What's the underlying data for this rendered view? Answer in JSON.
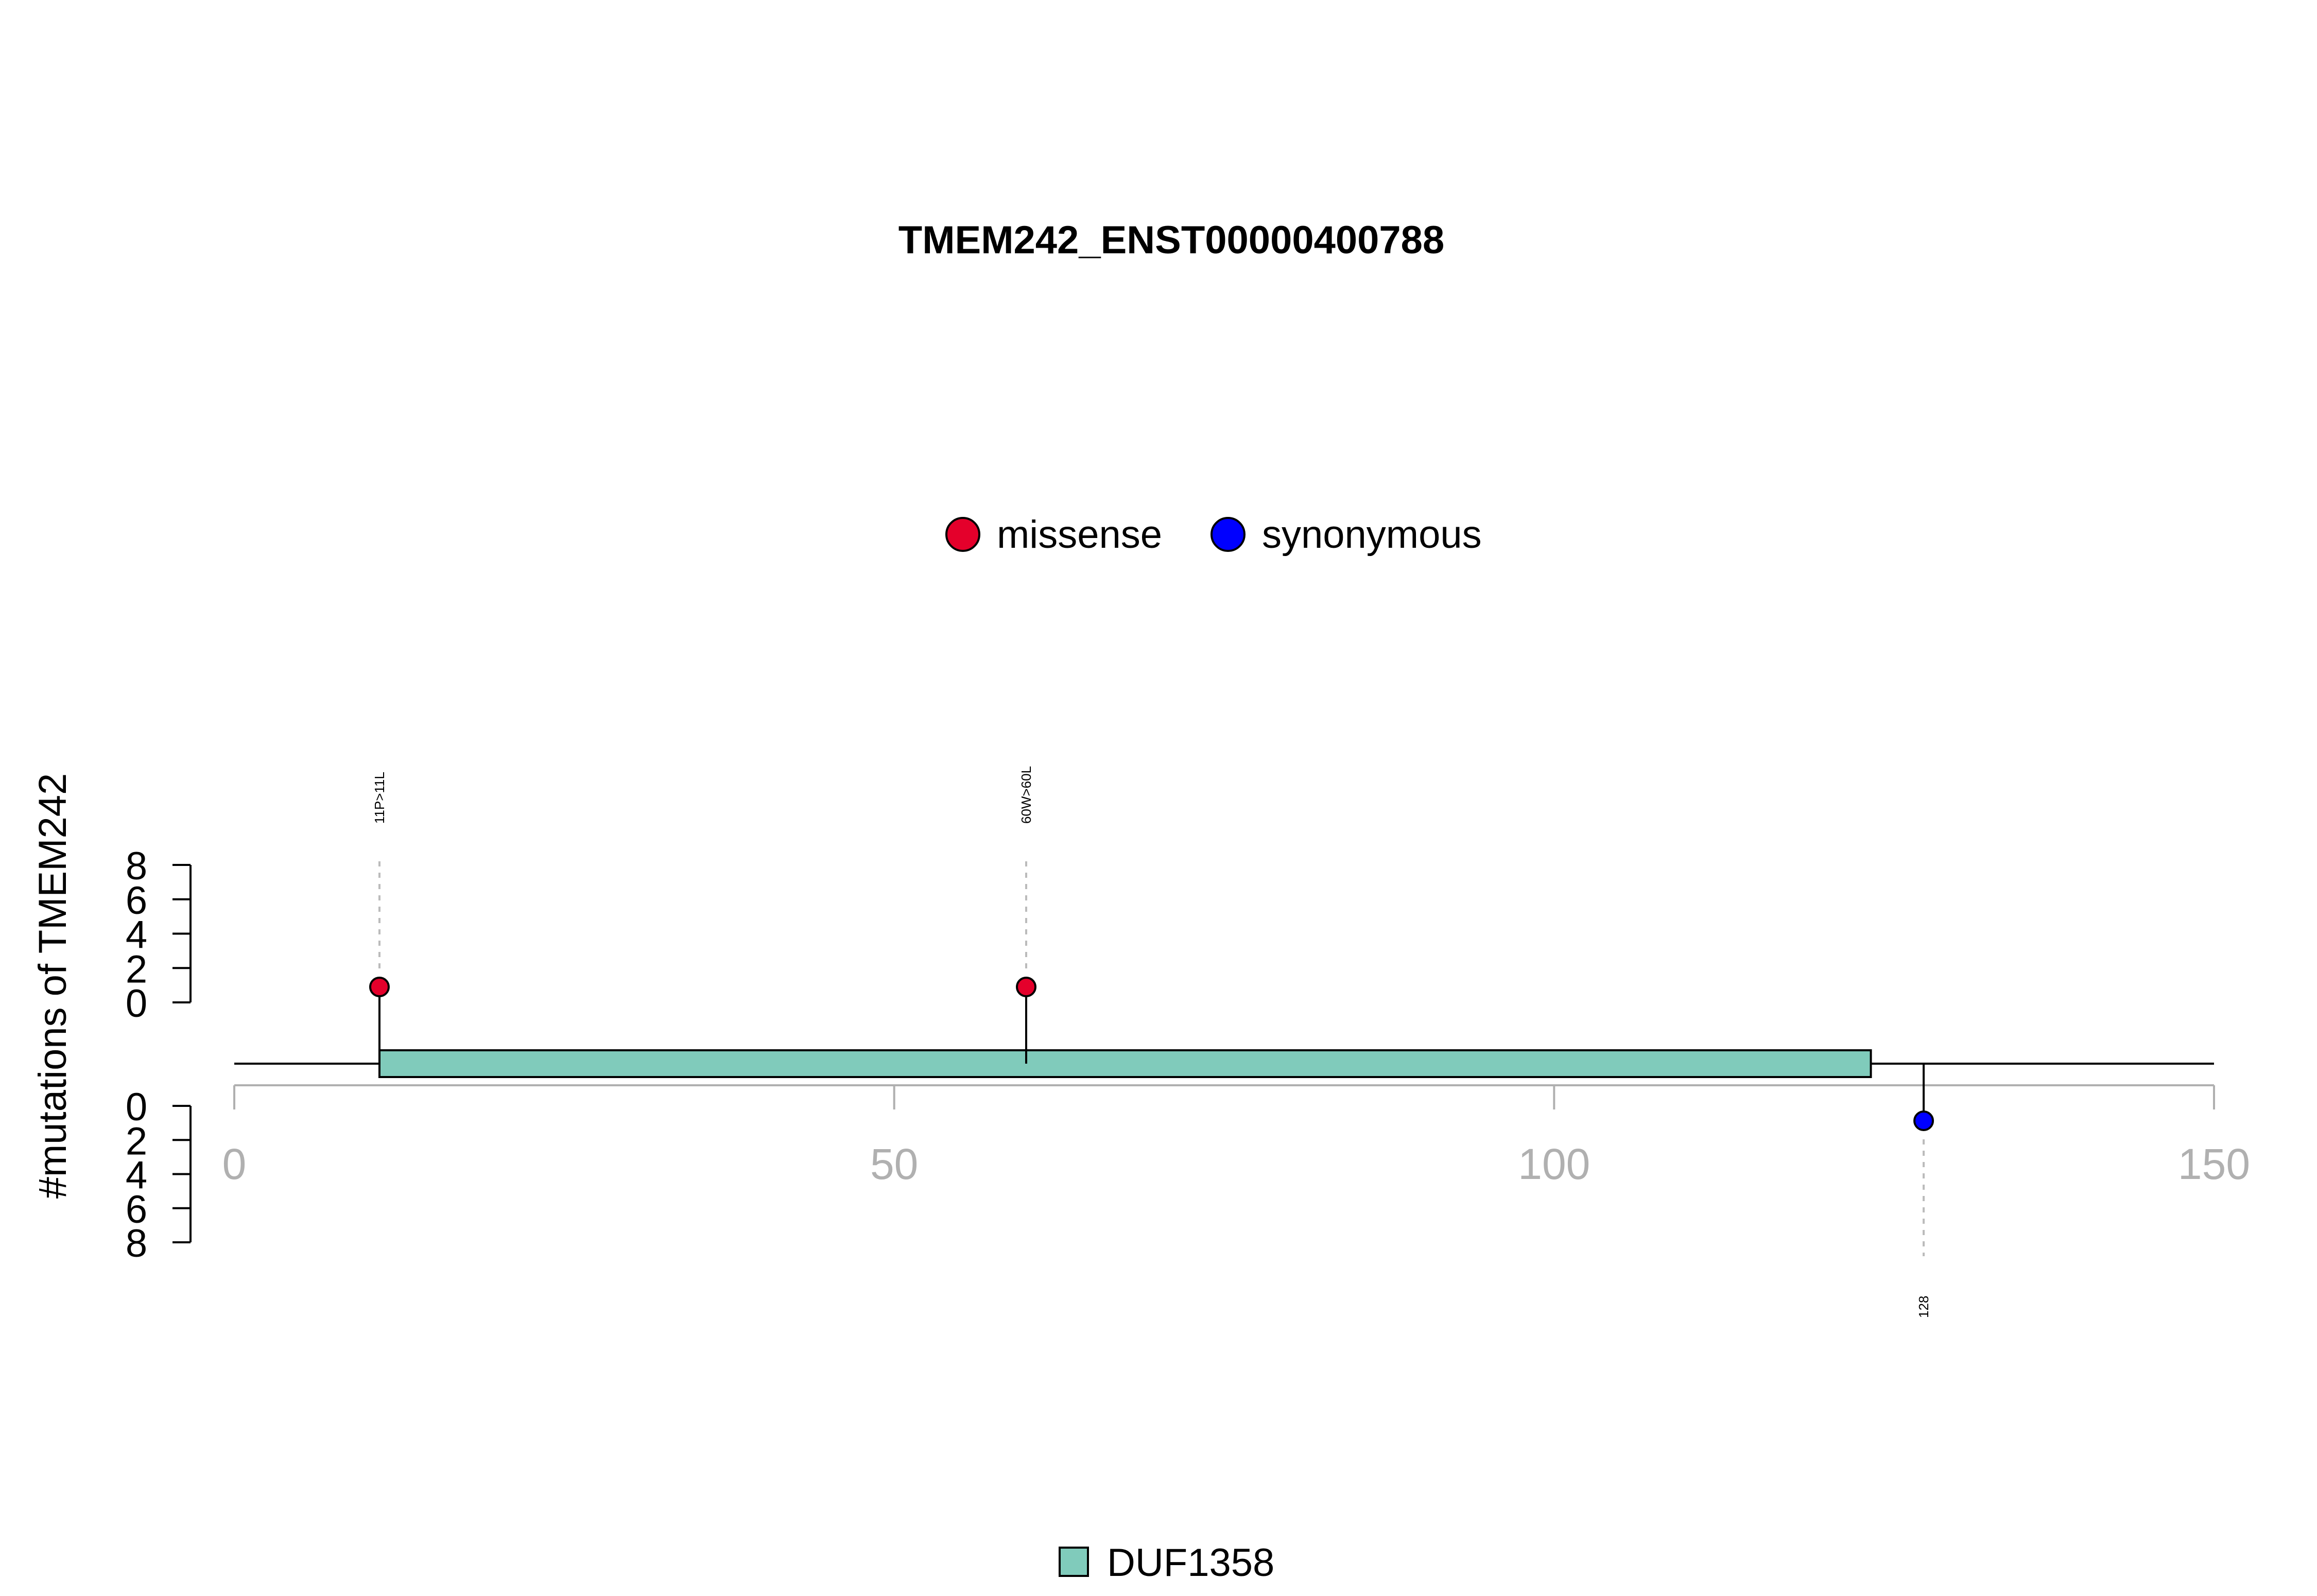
{
  "chart_data": {
    "type": "lollipop",
    "title": "TMEM242_ENST00000400788",
    "ylabel": "#mutations of TMEM242",
    "xlim": [
      0,
      150
    ],
    "x_ticks": [
      "0",
      "50",
      "100",
      "150"
    ],
    "x_tick_values": [
      0,
      50,
      100,
      150
    ],
    "y_ticks_upper": [
      "0",
      "2",
      "4",
      "6",
      "8"
    ],
    "y_ticks_lower": [
      "0",
      "2",
      "4",
      "6",
      "8"
    ],
    "y_tick_values": [
      0,
      2,
      4,
      6,
      8
    ],
    "protein_length": 150,
    "legend": [
      {
        "label": "missense",
        "color": "#e4002b"
      },
      {
        "label": "synonymous",
        "color": "#0000ff"
      }
    ],
    "domains": [
      {
        "name": "DUF1358",
        "start": 11,
        "end": 124,
        "color": "#80cbbb"
      }
    ],
    "domain_legend": [
      {
        "label": "DUF1358",
        "color": "#80cbbb"
      }
    ],
    "mutations": [
      {
        "position": 11,
        "label": "11P>11L",
        "type": "missense",
        "count": 1,
        "side": "top",
        "color": "#e4002b"
      },
      {
        "position": 60,
        "label": "60W>60L",
        "type": "missense",
        "count": 1,
        "side": "top",
        "color": "#e4002b"
      },
      {
        "position": 128,
        "label": "128",
        "type": "synonymous",
        "count": 1,
        "side": "bottom",
        "color": "#0000ff"
      }
    ]
  }
}
